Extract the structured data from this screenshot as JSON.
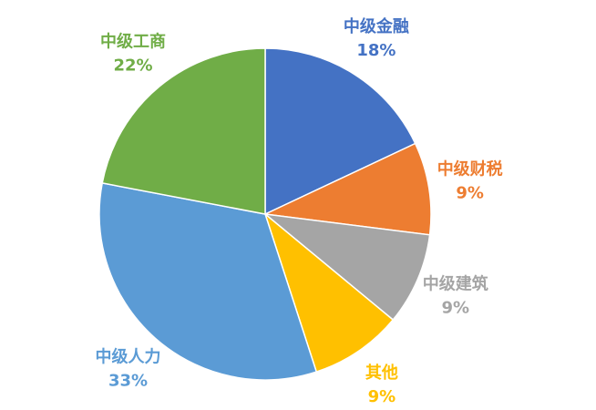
{
  "chart_data": {
    "type": "pie",
    "categories": [
      "中级金融",
      "中级财税",
      "中级建筑",
      "其他",
      "中级人力",
      "中级工商"
    ],
    "values": [
      18,
      9,
      9,
      9,
      33,
      22
    ],
    "value_labels": [
      "18%",
      "9%",
      "9%",
      "9%",
      "33%",
      "22%"
    ],
    "colors": [
      "#4472c4",
      "#ed7d31",
      "#a5a5a5",
      "#ffc000",
      "#5b9bd5",
      "#70ad47"
    ]
  }
}
